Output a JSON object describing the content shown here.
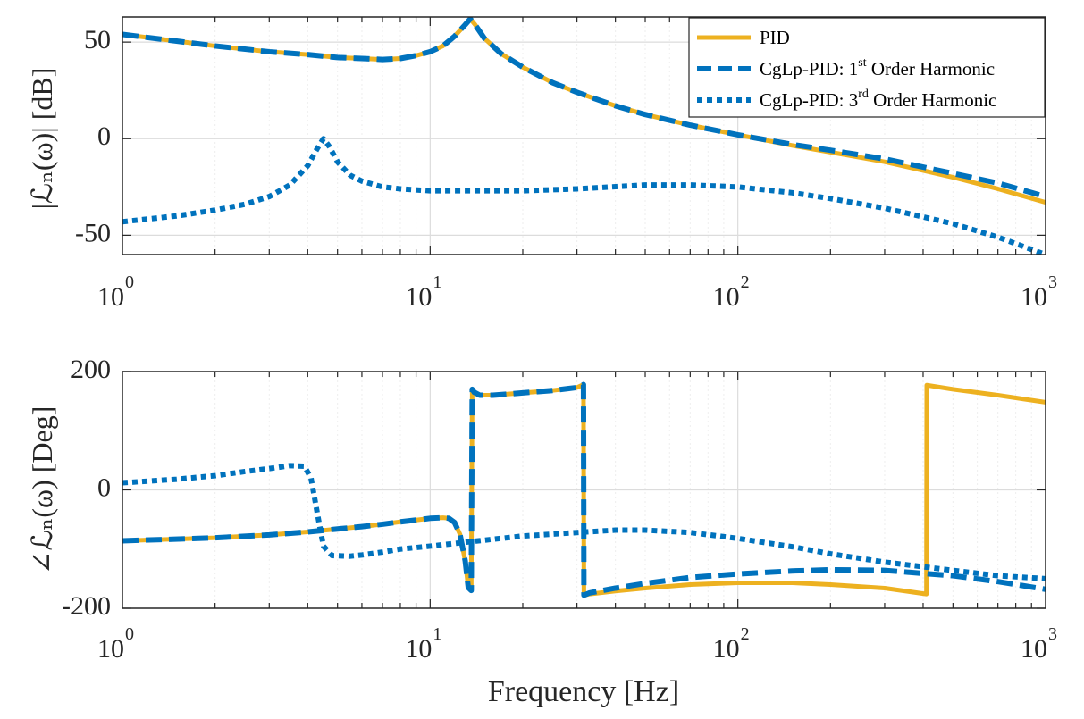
{
  "colors": {
    "pid": "#EDB120",
    "cglp": "#0072BD",
    "axis": "#262626",
    "grid_major": "#dcdcdc",
    "grid_minor": "#eeeeee"
  },
  "chart_data": [
    {
      "type": "line",
      "id": "magnitude",
      "xscale": "log",
      "xlim": [
        1,
        1000
      ],
      "ylim": [
        -60,
        63
      ],
      "yticks": [
        50,
        0,
        -50
      ],
      "ytick_labels": [
        "50",
        "0",
        "-50"
      ],
      "xtick_labels": [
        {
          "base": "10",
          "exp": "0"
        },
        {
          "base": "10",
          "exp": "1"
        },
        {
          "base": "10",
          "exp": "2"
        },
        {
          "base": "10",
          "exp": "3"
        }
      ],
      "ylabel": {
        "text": "|ℒₙ(ω)| [dB]"
      },
      "xlabel": "",
      "grid": true,
      "legend": {
        "position": "top-right",
        "entries": [
          {
            "base": "PID",
            "sup": "",
            "tail": ""
          },
          {
            "base": "CgLp-PID: 1",
            "sup": "st",
            "tail": " Order Harmonic"
          },
          {
            "base": "CgLp-PID: 3",
            "sup": "rd",
            "tail": " Order Harmonic"
          }
        ]
      },
      "series": [
        {
          "name": "PID",
          "style": "solid",
          "color_key": "pid",
          "x": [
            1,
            1.5,
            2,
            3,
            4,
            5,
            6,
            7,
            8,
            9,
            10,
            11,
            12,
            13,
            13.5,
            14,
            15,
            17,
            20,
            25,
            30,
            40,
            50,
            70,
            100,
            150,
            200,
            300,
            500,
            700,
            1000
          ],
          "y": [
            54,
            50.5,
            48,
            45,
            43.5,
            42,
            41.5,
            41,
            41.5,
            43,
            45,
            48,
            53,
            59,
            62,
            59,
            52,
            44,
            37,
            29,
            24,
            17,
            12.5,
            7,
            2,
            -3.5,
            -7,
            -12,
            -20,
            -26,
            -33
          ]
        },
        {
          "name": "CgLp-PID: 1st Order Harmonic",
          "style": "dashed",
          "color_key": "cglp",
          "x": [
            1,
            1.5,
            2,
            3,
            4,
            5,
            6,
            7,
            8,
            9,
            10,
            11,
            12,
            13,
            13.5,
            14,
            15,
            17,
            20,
            25,
            30,
            40,
            50,
            70,
            100,
            150,
            200,
            300,
            500,
            700,
            1000
          ],
          "y": [
            54,
            50.5,
            48,
            45,
            43.5,
            42,
            41.5,
            41,
            41.5,
            43,
            45,
            48,
            53,
            59,
            62,
            59,
            52,
            44,
            37,
            29,
            24,
            17,
            12.5,
            7,
            2,
            -3,
            -6,
            -10.5,
            -18,
            -23,
            -30
          ]
        },
        {
          "name": "CgLp-PID: 3rd Order Harmonic",
          "style": "dotted",
          "color_key": "cglp",
          "x": [
            1,
            1.5,
            2,
            2.5,
            3,
            3.5,
            4,
            4.3,
            4.5,
            4.7,
            5,
            5.5,
            6,
            7,
            8,
            10,
            15,
            20,
            30,
            50,
            70,
            100,
            150,
            200,
            300,
            500,
            700,
            1000
          ],
          "y": [
            -43,
            -40,
            -37,
            -34,
            -30,
            -24,
            -14,
            -5,
            0,
            -4,
            -12,
            -19,
            -22,
            -25,
            -26,
            -27,
            -27,
            -27,
            -26,
            -24,
            -24,
            -25,
            -28,
            -31,
            -36,
            -44,
            -51,
            -60
          ]
        }
      ]
    },
    {
      "type": "line",
      "id": "phase",
      "xscale": "log",
      "xlim": [
        1,
        1000
      ],
      "ylim": [
        -200,
        200
      ],
      "yticks": [
        200,
        0,
        -200
      ],
      "ytick_labels": [
        "200",
        "0",
        "-200"
      ],
      "xtick_labels": [
        {
          "base": "10",
          "exp": "0"
        },
        {
          "base": "10",
          "exp": "1"
        },
        {
          "base": "10",
          "exp": "2"
        },
        {
          "base": "10",
          "exp": "3"
        }
      ],
      "ylabel": {
        "text": "∠ℒₙ(ω) [Deg]"
      },
      "xlabel": "Frequency [Hz]",
      "grid": true,
      "series": [
        {
          "name": "PID",
          "style": "solid",
          "color_key": "pid",
          "x": [
            1,
            2,
            3,
            4,
            5,
            6,
            7,
            8,
            9,
            10,
            11,
            11.5,
            12,
            12.5,
            13,
            13.3,
            13.6,
            13.7,
            13.9,
            14.5,
            16,
            18,
            20,
            25,
            30,
            31.5,
            31.6,
            33,
            40,
            50,
            70,
            100,
            150,
            200,
            300,
            410,
            411,
            500,
            700,
            1000
          ],
          "y": [
            -86,
            -81,
            -76,
            -71,
            -66,
            -62,
            -58,
            -54,
            -51,
            -48,
            -47,
            -48,
            -55,
            -75,
            -120,
            -165,
            -170,
            170,
            165,
            160,
            160,
            162,
            164,
            168,
            173,
            178,
            -178,
            -176,
            -171,
            -166,
            -160,
            -157,
            -157,
            -160,
            -166,
            -176,
            177,
            170,
            160,
            148
          ]
        },
        {
          "name": "CgLp-PID: 1st Order Harmonic",
          "style": "dashed",
          "color_key": "cglp",
          "x": [
            1,
            2,
            3,
            4,
            5,
            6,
            7,
            8,
            9,
            10,
            11,
            11.5,
            12,
            12.5,
            13,
            13.3,
            13.6,
            13.7,
            13.9,
            14.5,
            16,
            18,
            20,
            25,
            30,
            31.5,
            31.6,
            33,
            40,
            50,
            70,
            100,
            150,
            200,
            300,
            500,
            700,
            1000
          ],
          "y": [
            -86,
            -81,
            -76,
            -71,
            -66,
            -62,
            -58,
            -54,
            -51,
            -48,
            -47,
            -48,
            -55,
            -75,
            -120,
            -165,
            -170,
            170,
            165,
            160,
            160,
            162,
            164,
            168,
            173,
            178,
            -178,
            -174,
            -166,
            -158,
            -148,
            -142,
            -137,
            -135,
            -136,
            -145,
            -155,
            -168
          ]
        },
        {
          "name": "CgLp-PID: 3rd Order Harmonic",
          "style": "dotted",
          "color_key": "cglp",
          "x": [
            1,
            1.5,
            2,
            2.5,
            3,
            3.5,
            3.9,
            4.1,
            4.3,
            4.5,
            4.8,
            5.5,
            6,
            7,
            8,
            10,
            15,
            20,
            30,
            40,
            50,
            70,
            100,
            150,
            200,
            300,
            500,
            700,
            1000
          ],
          "y": [
            12,
            18,
            24,
            31,
            36,
            41,
            40,
            20,
            -40,
            -95,
            -111,
            -112,
            -110,
            -105,
            -100,
            -95,
            -85,
            -78,
            -72,
            -68,
            -68,
            -72,
            -82,
            -96,
            -108,
            -122,
            -136,
            -145,
            -150
          ]
        }
      ]
    }
  ]
}
